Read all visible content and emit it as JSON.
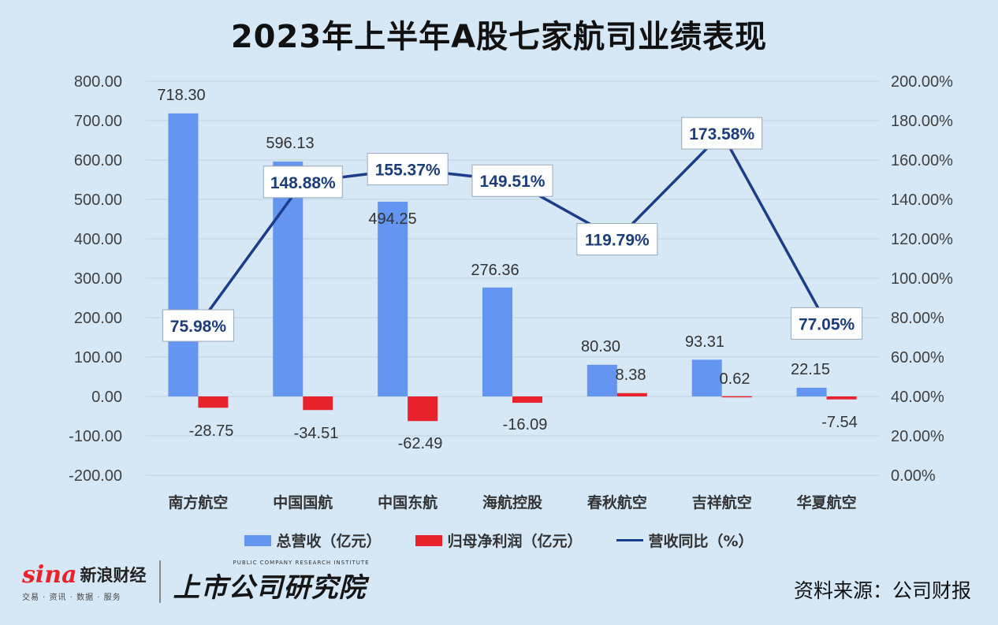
{
  "title": "2023年上半年A股七家航司业绩表现",
  "source": "资料来源：公司财报",
  "logos": {
    "sina_word": "sina",
    "sina_cn": "新浪财经",
    "sina_tagline": "交易 · 资讯 · 数据 · 服务",
    "institute_en": "PUBLIC COMPANY RESEARCH INSTITUTE",
    "institute_cn": "上市公司研究院"
  },
  "colors": {
    "background": "#d6e8f5",
    "revenue": "#6495f0",
    "net_profit": "#e8232b",
    "yoy": "#1c3d8c",
    "grid": "#c0d0de"
  },
  "chart_data": {
    "type": "bar",
    "categories": [
      "南方航空",
      "中国国航",
      "中国东航",
      "海航控股",
      "春秋航空",
      "吉祥航空",
      "华夏航空"
    ],
    "series": [
      {
        "name": "总营收（亿元）",
        "type": "bar",
        "axis": "left",
        "values": [
          718.3,
          596.13,
          494.25,
          276.36,
          80.3,
          93.31,
          22.15
        ],
        "labels": [
          "718.30",
          "596.13",
          "494.25",
          "276.36",
          "80.30",
          "93.31",
          "22.15"
        ]
      },
      {
        "name": "归母净利润（亿元）",
        "type": "bar",
        "axis": "left",
        "values": [
          -28.75,
          -34.51,
          -62.49,
          -16.09,
          8.38,
          0.62,
          -7.54
        ],
        "labels": [
          "-28.75",
          "-34.51",
          "-62.49",
          "-16.09",
          "8.38",
          "0.62",
          "-7.54"
        ]
      },
      {
        "name": "营收同比（%）",
        "type": "line",
        "axis": "right",
        "values": [
          75.98,
          148.88,
          155.37,
          149.51,
          119.79,
          173.58,
          77.05
        ],
        "labels": [
          "75.98%",
          "148.88%",
          "155.37%",
          "149.51%",
          "119.79%",
          "173.58%",
          "77.05%"
        ]
      }
    ],
    "y_left": {
      "range": [
        -200,
        800
      ],
      "ticks": [
        800,
        700,
        600,
        500,
        400,
        300,
        200,
        100,
        0,
        -100,
        -200
      ],
      "tick_labels": [
        "800.00",
        "700.00",
        "600.00",
        "500.00",
        "400.00",
        "300.00",
        "200.00",
        "100.00",
        "0.00",
        "-100.00",
        "-200.00"
      ]
    },
    "y_right": {
      "range": [
        0,
        200
      ],
      "ticks": [
        200,
        180,
        160,
        140,
        120,
        100,
        80,
        60,
        40,
        20,
        0
      ],
      "tick_labels": [
        "200.00%",
        "180.00%",
        "160.00%",
        "140.00%",
        "120.00%",
        "100.00%",
        "80.00%",
        "60.00%",
        "40.00%",
        "20.00%",
        "0.00%"
      ]
    },
    "grid": true,
    "legend": "bottom"
  }
}
